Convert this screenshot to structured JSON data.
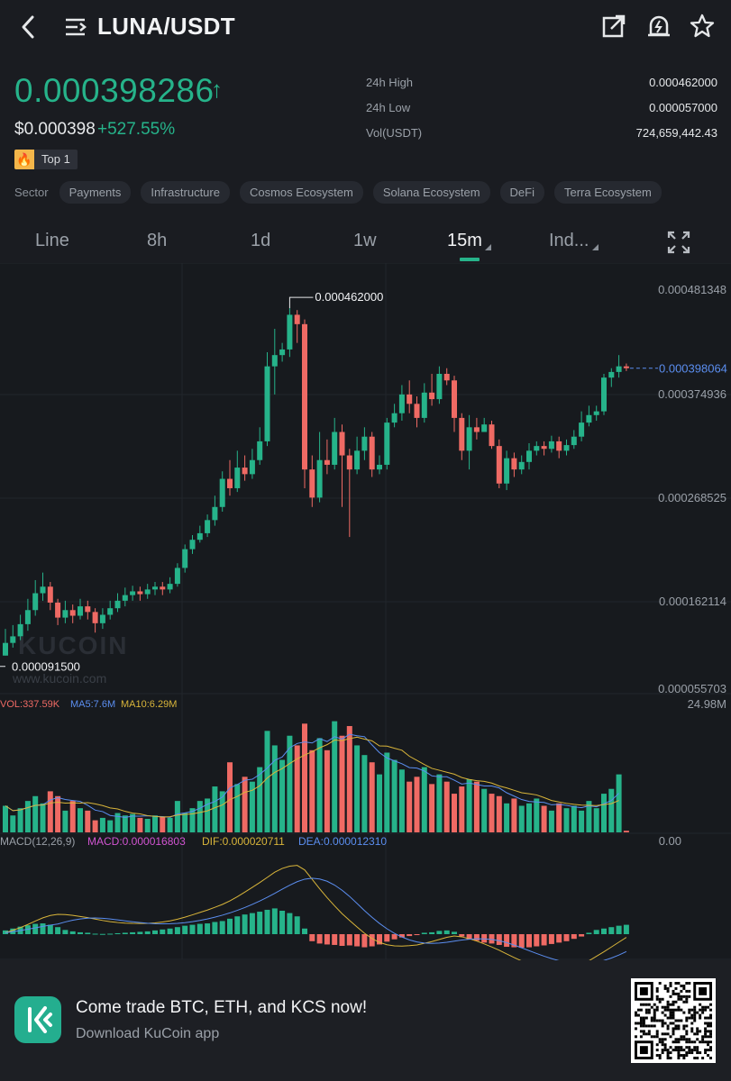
{
  "header": {
    "title": "LUNA/USDT",
    "icons": [
      "back-arrow-icon",
      "menu-list-icon",
      "share-icon",
      "price-alert-icon",
      "star-icon"
    ]
  },
  "ticker": {
    "price": "0.000398286",
    "direction": "up",
    "price_usd": "$0.000398",
    "change_pct": "+527.55%",
    "badge": "Top 1",
    "stats": [
      {
        "label": "24h High",
        "value": "0.000462000"
      },
      {
        "label": "24h Low",
        "value": "0.000057000"
      },
      {
        "label": "Vol(USDT)",
        "value": "724,659,442.43"
      }
    ]
  },
  "sectors": {
    "label": "Sector",
    "items": [
      "Payments",
      "Infrastructure",
      "Cosmos Ecosystem",
      "Solana Ecosystem",
      "DeFi",
      "Terra Ecosystem"
    ]
  },
  "tabs": {
    "items": [
      "Line",
      "8h",
      "1d",
      "1w",
      "15m",
      "Ind..."
    ],
    "active": "15m"
  },
  "chart": {
    "price_axis": [
      "0.000481348",
      "0.000374936",
      "0.000268525",
      "0.000162114",
      "0.000055703"
    ],
    "last_price": "0.000398064",
    "high_marker": "0.000462000",
    "low_marker": "0.000091500",
    "watermark": "KUCOIN",
    "watermark_url": "www.kucoin.com",
    "volume": {
      "vol_label": "VOL:337.59K",
      "ma5_label": "MA5:7.6M",
      "ma10_label": "MA10:6.29M",
      "axis_max": "24.98M"
    },
    "macd": {
      "name_label": "MACD(12,26,9)",
      "macd_label": "MACD:0.000016803",
      "dif_label": "DIF:0.000020711",
      "dea_label": "DEA:0.000012310",
      "axis_zero": "0.00"
    },
    "colors": {
      "up": "#26b38a",
      "down": "#ef6a64",
      "ma5": "#5b8ef0",
      "ma10": "#d9b53a",
      "dea": "#5b8ef0",
      "dif": "#d9b53a",
      "macd_text": "#d154d1"
    }
  },
  "candles": [
    [
      9.15e-05,
      0.000105,
      0.00012,
      9.15e-05
    ],
    [
      0.000105,
      0.000112,
      0.000124,
      0.0001
    ],
    [
      0.000112,
      0.000125,
      0.000135,
      0.000108
    ],
    [
      0.000125,
      0.00014,
      0.000152,
      0.000118
    ],
    [
      0.00014,
      0.000158,
      0.000172,
      0.000134
    ],
    [
      0.000158,
      0.000165,
      0.00018,
      0.00015
    ],
    [
      0.000165,
      0.000148,
      0.00017,
      0.00014
    ],
    [
      0.000148,
      0.000132,
      0.000152,
      0.000124
    ],
    [
      0.000132,
      0.00014,
      0.00015,
      0.000126
    ],
    [
      0.00014,
      0.000134,
      0.000146,
      0.000126
    ],
    [
      0.000134,
      0.000144,
      0.000152,
      0.00013
    ],
    [
      0.000144,
      0.000138,
      0.00015,
      0.00013
    ],
    [
      0.000138,
      0.000126,
      0.000142,
      0.000116
    ],
    [
      0.000126,
      0.000135,
      0.000142,
      0.00012
    ],
    [
      0.000135,
      0.000142,
      0.00015,
      0.00013
    ],
    [
      0.000142,
      0.00015,
      0.000158,
      0.000138
    ],
    [
      0.00015,
      0.000156,
      0.000164,
      0.000144
    ],
    [
      0.000156,
      0.00016,
      0.000166,
      0.00015
    ],
    [
      0.00016,
      0.000157,
      0.000165,
      0.00015
    ],
    [
      0.000157,
      0.000162,
      0.000168,
      0.000152
    ],
    [
      0.000162,
      0.000165,
      0.00017,
      0.000156
    ],
    [
      0.000165,
      0.000162,
      0.00017,
      0.000156
    ],
    [
      0.000162,
      0.000168,
      0.000175,
      0.000158
    ],
    [
      0.000168,
      0.000185,
      0.00019,
      0.000165
    ],
    [
      0.000185,
      0.000205,
      0.00021,
      0.00018
    ],
    [
      0.000205,
      0.000215,
      0.00022,
      0.0002
    ],
    [
      0.000215,
      0.000222,
      0.00023,
      0.000212
    ],
    [
      0.000222,
      0.000236,
      0.000242,
      0.000218
    ],
    [
      0.000236,
      0.00025,
      0.000262,
      0.00023
    ],
    [
      0.00025,
      0.00028,
      0.000288,
      0.000245
    ],
    [
      0.00028,
      0.00027,
      0.0003,
      0.000262
    ],
    [
      0.00027,
      0.000292,
      0.00031,
      0.000266
    ],
    [
      0.000292,
      0.000285,
      0.000305,
      0.000278
    ],
    [
      0.000285,
      0.0003,
      0.000312,
      0.00028
    ],
    [
      0.0003,
      0.00032,
      0.000335,
      0.000295
    ],
    [
      0.00032,
      0.0004,
      0.000415,
      0.000315
    ],
    [
      0.0004,
      0.000412,
      0.00044,
      0.00037
    ],
    [
      0.000412,
      0.000418,
      0.000425,
      0.000405
    ],
    [
      0.000418,
      0.000455,
      0.000462,
      0.00041
    ],
    [
      0.000455,
      0.000445,
      0.00046,
      0.000425
    ],
    [
      0.000445,
      0.00029,
      0.00045,
      0.00027
    ],
    [
      0.00029,
      0.00026,
      0.000305,
      0.00025
    ],
    [
      0.00026,
      0.0003,
      0.00033,
      0.000255
    ],
    [
      0.0003,
      0.000295,
      0.000322,
      0.000285
    ],
    [
      0.000295,
      0.00033,
      0.000345,
      0.00029
    ],
    [
      0.00033,
      0.000305,
      0.000338,
      0.00025
    ],
    [
      0.000305,
      0.00029,
      0.000312,
      0.000218
    ],
    [
      0.00029,
      0.00031,
      0.000325,
      0.000285
    ],
    [
      0.00031,
      0.000325,
      0.000335,
      0.0003
    ],
    [
      0.000325,
      0.00029,
      0.00033,
      0.000282
    ],
    [
      0.00029,
      0.000295,
      0.000305,
      0.000285
    ],
    [
      0.000295,
      0.00034,
      0.000345,
      0.00029
    ],
    [
      0.00034,
      0.00035,
      0.00036,
      0.000335
    ],
    [
      0.00035,
      0.00037,
      0.00038,
      0.000342
    ],
    [
      0.00037,
      0.00036,
      0.000385,
      0.00035
    ],
    [
      0.00036,
      0.000345,
      0.000368,
      0.000335
    ],
    [
      0.000345,
      0.000372,
      0.000382,
      0.00034
    ],
    [
      0.000372,
      0.000365,
      0.000392,
      0.000358
    ],
    [
      0.000365,
      0.000392,
      0.0004,
      0.00036
    ],
    [
      0.000392,
      0.000385,
      0.000398,
      0.00038
    ],
    [
      0.000385,
      0.000345,
      0.00039,
      0.00033
    ],
    [
      0.000345,
      0.00031,
      0.00035,
      0.0003
    ],
    [
      0.00031,
      0.000335,
      0.000348,
      0.00029
    ],
    [
      0.000335,
      0.00033,
      0.000345,
      0.000322
    ],
    [
      0.00033,
      0.000338,
      0.000345,
      0.00033
    ],
    [
      0.000338,
      0.000315,
      0.000342,
      0.000312
    ],
    [
      0.000315,
      0.000275,
      0.000322,
      0.00027
    ],
    [
      0.000275,
      0.000302,
      0.00031,
      0.000268
    ],
    [
      0.000302,
      0.00029,
      0.000308,
      0.000282
    ],
    [
      0.00029,
      0.000298,
      0.000305,
      0.000285
    ],
    [
      0.000298,
      0.00031,
      0.000318,
      0.00029
    ],
    [
      0.00031,
      0.000315,
      0.00032,
      0.000305
    ],
    [
      0.000315,
      0.000312,
      0.00032,
      0.000305
    ],
    [
      0.000312,
      0.00032,
      0.000326,
      0.000308
    ],
    [
      0.00032,
      0.00031,
      0.000325,
      0.000302
    ],
    [
      0.00031,
      0.000316,
      0.000322,
      0.000305
    ],
    [
      0.000316,
      0.000325,
      0.000332,
      0.000312
    ],
    [
      0.000325,
      0.00034,
      0.000352,
      0.00032
    ],
    [
      0.00034,
      0.000348,
      0.000358,
      0.000336
    ],
    [
      0.000348,
      0.000352,
      0.000358,
      0.000342
    ],
    [
      0.000352,
      0.000388,
      0.000392,
      0.000348
    ],
    [
      0.000388,
      0.000394,
      0.000398,
      0.000378
    ],
    [
      0.000394,
      0.0004,
      0.000412,
      0.000388
    ],
    [
      0.0004,
      0.000398,
      0.000403,
      0.000395
    ]
  ],
  "volumes_m": [
    5.5,
    3.5,
    5.0,
    6.5,
    7.5,
    6.0,
    8.5,
    7.5,
    4.5,
    6.5,
    5.0,
    4.5,
    2.5,
    3.0,
    2.5,
    4.0,
    3.5,
    3.8,
    3.0,
    2.8,
    3.5,
    3.2,
    3.0,
    6.5,
    4.0,
    5.0,
    6.5,
    7.0,
    9.5,
    8.5,
    14.5,
    10.0,
    11.5,
    10.5,
    13.5,
    21.0,
    18.0,
    15.0,
    20.0,
    18.0,
    22.5,
    17.0,
    19.5,
    17.0,
    23.0,
    20.0,
    22.0,
    18.0,
    16.0,
    14.5,
    12.0,
    16.5,
    15.0,
    13.0,
    10.5,
    11.5,
    13.5,
    10.0,
    12.0,
    10.5,
    8.0,
    9.5,
    11.0,
    10.5,
    9.0,
    8.0,
    7.5,
    6.0,
    7.0,
    5.5,
    6.0,
    7.0,
    5.5,
    4.5,
    6.0,
    5.0,
    5.5,
    4.5,
    6.5,
    5.0,
    8.0,
    9.0,
    12.0,
    0.34
  ],
  "macd_hist": [
    0.8,
    1.2,
    1.6,
    1.9,
    2.2,
    2.3,
    2.0,
    1.5,
    0.9,
    0.6,
    0.4,
    0.3,
    0.1,
    0.05,
    0.1,
    0.2,
    0.3,
    0.4,
    0.5,
    0.6,
    0.8,
    1.0,
    1.2,
    1.5,
    1.8,
    2.0,
    2.2,
    2.3,
    2.6,
    2.8,
    3.3,
    3.8,
    4.2,
    4.5,
    4.8,
    5.2,
    5.5,
    5.0,
    4.5,
    3.8,
    1.2,
    -1.5,
    -2.0,
    -2.2,
    -2.3,
    -2.5,
    -2.4,
    -2.6,
    -2.8,
    -2.6,
    -2.2,
    -1.6,
    -1.1,
    -0.7,
    -0.4,
    -0.2,
    0.3,
    0.4,
    0.7,
    0.8,
    0.5,
    -0.5,
    -1.1,
    -1.4,
    -1.8,
    -2.0,
    -2.3,
    -2.7,
    -2.8,
    -2.9,
    -2.8,
    -2.6,
    -2.4,
    -2.1,
    -1.8,
    -1.5,
    -1.0,
    -0.5,
    0.3,
    0.9,
    1.2,
    1.5,
    1.8,
    2.0
  ]
}
